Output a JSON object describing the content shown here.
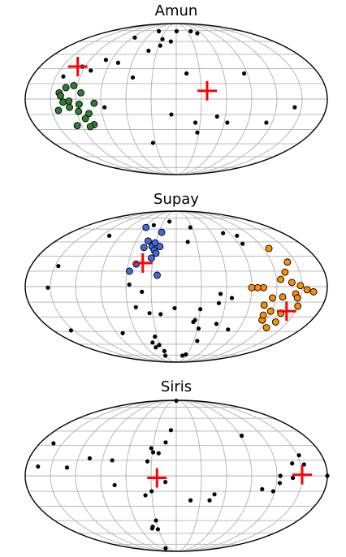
{
  "colors": {
    "background": "#ffffff",
    "grid": "#b0b0b0",
    "frame": "#000000",
    "field_points": "#000000",
    "centre_marker": "#ff0000",
    "amun_members": "#2e7d32",
    "supay_members_blue": "#4169e1",
    "supay_members_orange": "#ff8c00"
  },
  "chart_data": [
    {
      "type": "scatter",
      "projection": "mollweide",
      "title": "Amun",
      "grid": true,
      "xlim": [
        -180,
        180
      ],
      "ylim": [
        -90,
        90
      ],
      "series": [
        {
          "role": "field",
          "color": "#000000",
          "points": [
            [
              -47,
              74
            ],
            [
              1,
              74
            ],
            [
              39,
              74
            ],
            [
              51,
              71
            ],
            [
              -85,
              65
            ],
            [
              -27,
              63
            ],
            [
              -10,
              60
            ],
            [
              -27,
              55
            ],
            [
              -43,
              49
            ],
            [
              -98,
              39
            ],
            [
              -124,
              32
            ],
            [
              -110,
              28
            ],
            [
              -54,
              21
            ],
            [
              13,
              25
            ],
            [
              86,
              25
            ],
            [
              113,
              -23
            ],
            [
              50,
              -17
            ],
            [
              142,
              -8
            ],
            [
              -6,
              -15
            ],
            [
              -86,
              -8
            ],
            [
              24,
              -23
            ],
            [
              28,
              -33
            ],
            [
              -34,
              -44
            ],
            [
              -79,
              36
            ],
            [
              -141,
              22
            ],
            [
              64,
              -23
            ]
          ]
        },
        {
          "role": "group",
          "color": "#2e7d32",
          "points": [
            [
              -133,
              11
            ],
            [
              -140,
              6
            ],
            [
              -138,
              3
            ],
            [
              -135,
              -3
            ],
            [
              -128,
              -2
            ],
            [
              -116,
              -5
            ],
            [
              -128,
              -8
            ],
            [
              -118,
              -12
            ],
            [
              -106,
              -14
            ],
            [
              -98,
              -4
            ],
            [
              -112,
              -19
            ],
            [
              -104,
              -25
            ],
            [
              -142,
              -11
            ],
            [
              -126,
              -26
            ],
            [
              -110,
              -27
            ],
            [
              -114,
              6
            ],
            [
              -124,
              13
            ]
          ]
        },
        {
          "role": "centre",
          "color": "#ff0000",
          "points": [
            [
              -130,
              32
            ],
            [
              37,
              8
            ]
          ]
        }
      ]
    },
    {
      "type": "scatter",
      "projection": "mollweide",
      "title": "Supay",
      "grid": true,
      "xlim": [
        -180,
        180
      ],
      "ylim": [
        -90,
        90
      ],
      "series": [
        {
          "role": "field",
          "color": "#000000",
          "points": [
            [
              -16,
              70
            ],
            [
              -46,
              65
            ],
            [
              27,
              62
            ],
            [
              -108,
              52
            ],
            [
              79,
              55
            ],
            [
              98,
              52
            ],
            [
              17,
              45
            ],
            [
              96,
              43
            ],
            [
              -146,
              20
            ],
            [
              -153,
              -1
            ],
            [
              -56,
              2
            ],
            [
              -41,
              -5
            ],
            [
              -34,
              -26
            ],
            [
              -154,
              -44
            ],
            [
              -81,
              -47
            ],
            [
              -34,
              -51
            ],
            [
              -32,
              -61
            ],
            [
              -27,
              -69
            ],
            [
              18,
              -76
            ],
            [
              26,
              -74
            ],
            [
              36,
              -56
            ],
            [
              32,
              -42
            ],
            [
              25,
              -33
            ],
            [
              67,
              -11
            ],
            [
              52,
              -16
            ],
            [
              23,
              -35
            ],
            [
              55,
              -37
            ],
            [
              75,
              -43
            ],
            [
              -2,
              -21
            ],
            [
              -20,
              -27
            ],
            [
              30,
              -22
            ],
            [
              53,
              -7
            ],
            [
              -42,
              -58
            ],
            [
              -41,
              -64
            ],
            [
              -32,
              -76
            ],
            [
              -50,
              -20
            ]
          ]
        },
        {
          "role": "group",
          "color": "#4169e1",
          "points": [
            [
              -42,
              46
            ],
            [
              -34,
              40
            ],
            [
              -30,
              36
            ],
            [
              -32,
              28
            ],
            [
              -27,
              33
            ],
            [
              -23,
              40
            ],
            [
              -31,
              44
            ],
            [
              -45,
              39
            ],
            [
              -50,
              22
            ],
            [
              -23,
              11
            ],
            [
              -57,
              15
            ],
            [
              -25,
              56
            ],
            [
              -58,
              62
            ]
          ]
        },
        {
          "role": "group",
          "color": "#ff8c00",
          "points": [
            [
              128,
              38
            ],
            [
              140,
              24
            ],
            [
              132,
              14
            ],
            [
              125,
              7
            ],
            [
              138,
              4
            ],
            [
              148,
              1
            ],
            [
              143,
              -7
            ],
            [
              128,
              -10
            ],
            [
              116,
              -11
            ],
            [
              119,
              -24
            ],
            [
              133,
              -26
            ],
            [
              150,
              -19
            ],
            [
              134,
              -35
            ],
            [
              128,
              -41
            ],
            [
              114,
              -33
            ],
            [
              164,
              -5
            ],
            [
              156,
              -3
            ],
            [
              108,
              -18
            ],
            [
              104,
              -1
            ],
            [
              97,
              -1
            ],
            [
              90,
              -1
            ],
            [
              112,
              -28
            ],
            [
              146,
              -11
            ]
          ]
        },
        {
          "role": "centre",
          "color": "#ff0000",
          "points": [
            [
              -42,
              23
            ],
            [
              139,
              -24
            ]
          ]
        }
      ]
    },
    {
      "type": "scatter",
      "projection": "mollweide",
      "title": "Siris",
      "grid": true,
      "xlim": [
        -180,
        180
      ],
      "ylim": [
        -90,
        90
      ],
      "series": [
        {
          "role": "field",
          "color": "#000000",
          "points": [
            [
              0,
              88
            ],
            [
              -8,
              46
            ],
            [
              -14,
              33
            ],
            [
              -22,
              22
            ],
            [
              -32,
              27
            ],
            [
              -29,
              23
            ],
            [
              -35,
              14
            ],
            [
              -106,
              17
            ],
            [
              -78,
              15
            ],
            [
              -74,
              -9
            ],
            [
              -131,
              8
            ],
            [
              -166,
              9
            ],
            [
              -162,
              32
            ],
            [
              -13,
              -6
            ],
            [
              -30,
              -15
            ],
            [
              -38,
              -19
            ],
            [
              18,
              -24
            ],
            [
              42,
              -24
            ],
            [
              47,
              -18
            ],
            [
              104,
              -13
            ],
            [
              118,
              -15
            ],
            [
              124,
              -7
            ],
            [
              124,
              0
            ],
            [
              140,
              12
            ],
            [
              154,
              11
            ],
            [
              180,
              0
            ],
            [
              -31,
              -55
            ],
            [
              -30,
              -45
            ],
            [
              -38,
              -52
            ],
            [
              -45,
              -82
            ],
            [
              -40,
              -54
            ],
            [
              92,
              40
            ],
            [
              152,
              20
            ],
            [
              139,
              -2
            ]
          ]
        },
        {
          "role": "centre",
          "color": "#ff0000",
          "points": [
            [
              -23,
              -2
            ],
            [
              150,
              1
            ]
          ]
        }
      ]
    }
  ]
}
